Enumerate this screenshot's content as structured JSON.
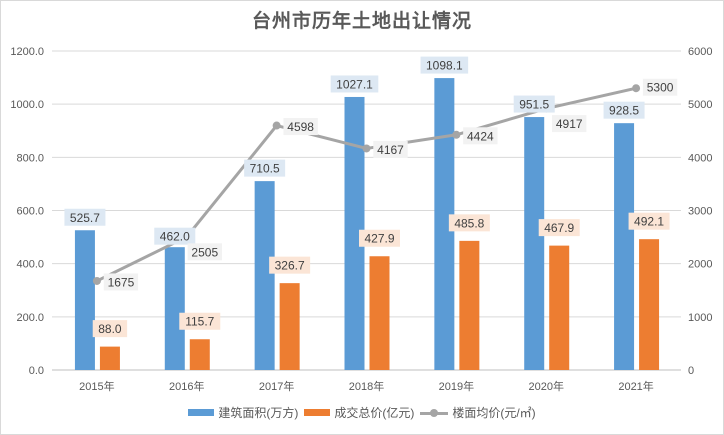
{
  "chart_data": {
    "type": "bar",
    "title": "台州市历年土地出让情况",
    "categories": [
      "2015年",
      "2016年",
      "2017年",
      "2018年",
      "2019年",
      "2020年",
      "2021年"
    ],
    "series": [
      {
        "name": "建筑面积(万方)",
        "type": "bar",
        "axis": "left",
        "color": "#5b9bd5",
        "label_bg": "#dde8f3",
        "values": [
          525.7,
          462.0,
          710.5,
          1027.1,
          1098.1,
          951.5,
          928.5
        ],
        "labels": [
          "525.7",
          "462.0",
          "710.5",
          "1027.1",
          "1098.1",
          "951.5",
          "928.5"
        ]
      },
      {
        "name": "成交总价(亿元)",
        "type": "bar",
        "axis": "left",
        "color": "#ed7d31",
        "label_bg": "#fbe5d6",
        "values": [
          88.0,
          115.7,
          326.7,
          427.9,
          485.8,
          467.9,
          492.1
        ],
        "labels": [
          "88.0",
          "115.7",
          "326.7",
          "427.9",
          "485.8",
          "467.9",
          "492.1"
        ]
      },
      {
        "name": "楼面均价(元/㎡)",
        "type": "line",
        "axis": "right",
        "color": "#a5a5a5",
        "label_bg": "#f2f2f2",
        "values": [
          1675,
          2505,
          4598,
          4167,
          4424,
          4917,
          5300
        ],
        "labels": [
          "1675",
          "2505",
          "4598",
          "4167",
          "4424",
          "4917",
          "5300"
        ]
      }
    ],
    "y_left": {
      "min": 0,
      "max": 1200,
      "step": 200,
      "ticks": [
        "0.0",
        "200.0",
        "400.0",
        "600.0",
        "800.0",
        "1000.0",
        "1200.0"
      ]
    },
    "y_right": {
      "min": 0,
      "max": 6000,
      "step": 1000,
      "ticks": [
        "0",
        "1000",
        "2000",
        "3000",
        "4000",
        "5000",
        "6000"
      ]
    },
    "grid": true,
    "legend": "bottom"
  }
}
